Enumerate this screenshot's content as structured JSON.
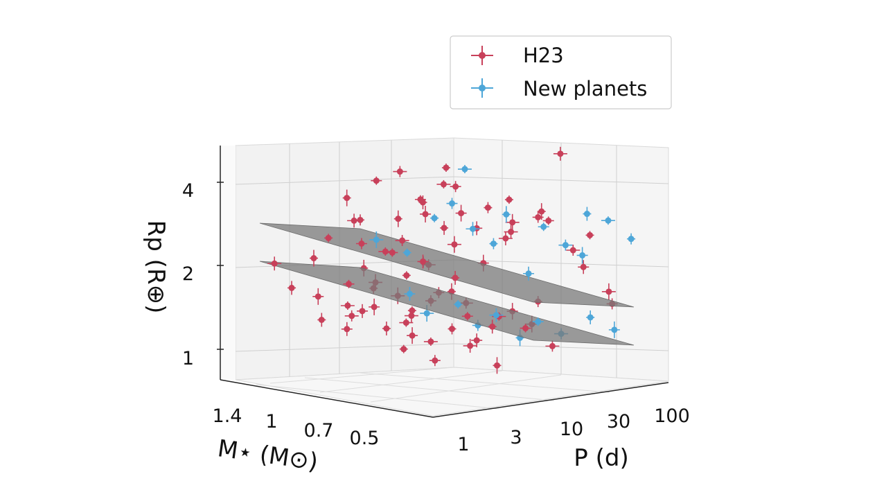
{
  "chart_data": {
    "type": "scatter",
    "projection": "3d",
    "title": "",
    "xlabel": "P (d)",
    "ylabel": "M⋆ (M⊙)",
    "zlabel": "Rp (R⊕)",
    "x_scale": "log",
    "y_scale": "log",
    "z_scale": "log",
    "xlim": [
      0.8,
      150
    ],
    "ylim": [
      1.6,
      0.42
    ],
    "zlim": [
      0.8,
      4.5
    ],
    "x_ticks": [
      "1",
      "3",
      "10",
      "30",
      "100"
    ],
    "y_ticks": [
      "1.4",
      "1",
      "0.7",
      "0.5"
    ],
    "z_ticks": [
      "1",
      "2",
      "4"
    ],
    "legend": {
      "position": "top-right",
      "entries": [
        "H23",
        "New planets"
      ]
    },
    "series": [
      {
        "name": "H23",
        "color": "#c8405a",
        "marker": "circle",
        "errorbars": true,
        "points": [
          [
            1.6,
            1.05,
            2.4
          ],
          [
            2.5,
            0.95,
            2.3
          ],
          [
            3.5,
            1.1,
            2.6
          ],
          [
            5,
            0.9,
            2.7
          ],
          [
            7,
            0.85,
            3.1
          ],
          [
            8,
            1.0,
            2.2
          ],
          [
            10,
            0.8,
            2.5
          ],
          [
            12,
            0.75,
            2.8
          ],
          [
            15,
            0.9,
            3.3
          ],
          [
            18,
            0.7,
            2.9
          ],
          [
            22,
            0.8,
            2.4
          ],
          [
            25,
            0.65,
            2.6
          ],
          [
            30,
            0.7,
            3.0
          ],
          [
            35,
            0.6,
            2.7
          ],
          [
            40,
            0.75,
            2.3
          ],
          [
            4,
            1.2,
            3.0
          ],
          [
            6,
            1.1,
            3.4
          ],
          [
            9,
            1.05,
            3.6
          ],
          [
            11,
            0.95,
            2.9
          ],
          [
            14,
            1.0,
            2.6
          ],
          [
            3,
            0.85,
            2.2
          ],
          [
            2,
            0.9,
            2.8
          ],
          [
            6,
            0.8,
            2.0
          ],
          [
            8,
            0.7,
            2.3
          ],
          [
            13,
            0.85,
            3.8
          ],
          [
            20,
            0.9,
            3.2
          ],
          [
            16,
            0.6,
            2.4
          ],
          [
            28,
            0.55,
            2.9
          ],
          [
            45,
            0.6,
            2.6
          ],
          [
            60,
            0.55,
            2.1
          ],
          [
            1.4,
            1.3,
            1.6
          ],
          [
            2,
            1.2,
            1.5
          ],
          [
            3,
            1.1,
            1.4
          ],
          [
            4,
            1.0,
            1.6
          ],
          [
            5,
            1.15,
            1.3
          ],
          [
            6,
            0.95,
            1.5
          ],
          [
            7,
            0.9,
            1.35
          ],
          [
            9,
            0.85,
            1.45
          ],
          [
            10,
            1.0,
            1.25
          ],
          [
            12,
            0.8,
            1.55
          ],
          [
            14,
            0.75,
            1.3
          ],
          [
            17,
            0.8,
            1.4
          ],
          [
            20,
            0.7,
            1.2
          ],
          [
            25,
            0.65,
            1.35
          ],
          [
            30,
            0.75,
            1.25
          ],
          [
            35,
            0.6,
            1.45
          ],
          [
            2.5,
            1.05,
            1.2
          ],
          [
            3.5,
            0.95,
            1.7
          ],
          [
            5,
            0.85,
            1.8
          ],
          [
            7,
            0.75,
            1.6
          ],
          [
            1.2,
            1.4,
            1.9
          ],
          [
            1.8,
            1.2,
            2.0
          ],
          [
            2.2,
            1.0,
            1.7
          ],
          [
            4.5,
            1.2,
            1.25
          ],
          [
            6.5,
            1.05,
            1.15
          ],
          [
            8.5,
            0.95,
            1.1
          ],
          [
            11,
            0.9,
            1.05
          ],
          [
            15,
            0.85,
            1.15
          ],
          [
            22,
            0.8,
            1.05
          ],
          [
            40,
            0.65,
            1.2
          ],
          [
            3,
            0.75,
            1.1
          ],
          [
            5,
            0.7,
            1.0
          ],
          [
            9,
            0.65,
            1.1
          ],
          [
            13,
            0.6,
            0.95
          ],
          [
            19,
            0.55,
            1.25
          ],
          [
            26,
            0.5,
            1.1
          ],
          [
            1.6,
            1.1,
            1.3
          ],
          [
            2.8,
            0.9,
            1.45
          ],
          [
            4,
            0.8,
            1.3
          ],
          [
            7.5,
            0.85,
            1.95
          ],
          [
            55,
            0.5,
            1.9
          ],
          [
            70,
            0.45,
            1.6
          ],
          [
            90,
            0.55,
            2.3
          ],
          [
            110,
            0.5,
            1.4
          ],
          [
            60,
            0.6,
            4.2
          ],
          [
            8,
            1.3,
            1.7
          ],
          [
            12,
            1.2,
            1.9
          ],
          [
            18,
            1.05,
            1.75
          ],
          [
            24,
            0.95,
            1.6
          ],
          [
            32,
            0.85,
            1.8
          ]
        ]
      },
      {
        "name": "New planets",
        "color": "#4da6d8",
        "marker": "circle",
        "errorbars": true,
        "points": [
          [
            12,
            0.9,
            2.6
          ],
          [
            15,
            0.85,
            2.9
          ],
          [
            20,
            0.8,
            2.4
          ],
          [
            28,
            0.7,
            2.7
          ],
          [
            40,
            0.6,
            2.5
          ],
          [
            50,
            0.55,
            2.2
          ],
          [
            60,
            0.5,
            2.8
          ],
          [
            75,
            0.55,
            2.0
          ],
          [
            100,
            0.5,
            2.6
          ],
          [
            120,
            0.45,
            2.3
          ],
          [
            8,
            0.95,
            1.5
          ],
          [
            10,
            0.9,
            1.3
          ],
          [
            14,
            0.8,
            1.4
          ],
          [
            18,
            0.75,
            1.2
          ],
          [
            22,
            0.7,
            1.3
          ],
          [
            30,
            0.65,
            1.1
          ],
          [
            35,
            0.6,
            1.25
          ],
          [
            45,
            0.55,
            1.15
          ],
          [
            65,
            0.5,
            1.3
          ],
          [
            80,
            0.45,
            1.2
          ],
          [
            25,
            0.9,
            3.6
          ],
          [
            33,
            0.8,
            2.1
          ],
          [
            48,
            0.7,
            1.7
          ],
          [
            6,
            1.1,
            2.2
          ],
          [
            9,
            1.0,
            2.0
          ]
        ]
      }
    ],
    "surfaces": [
      {
        "name": "upper plane",
        "color": "#7a7a7a",
        "opacity": 0.75
      },
      {
        "name": "lower plane",
        "color": "#7a7a7a",
        "opacity": 0.75
      }
    ]
  }
}
